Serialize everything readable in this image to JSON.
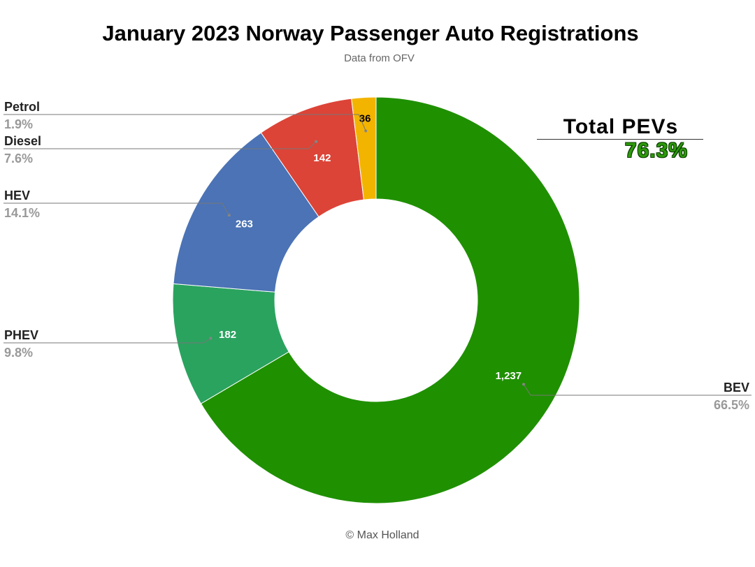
{
  "title": "January 2023 Norway Passenger Auto Registrations",
  "subtitle": "Data from OFV",
  "footer": "© Max Holland",
  "annotation": {
    "label": "Total PEVs",
    "value": "76.3%"
  },
  "chart_data": {
    "type": "pie",
    "donut": true,
    "slices": [
      {
        "label": "BEV",
        "value": 1237,
        "value_label": "1,237",
        "percent_label": "66.5%",
        "color": "#1f9000",
        "value_text_color": "#ffffff"
      },
      {
        "label": "PHEV",
        "value": 182,
        "value_label": "182",
        "percent_label": "9.8%",
        "color": "#2aa35f",
        "value_text_color": "#ffffff"
      },
      {
        "label": "HEV",
        "value": 263,
        "value_label": "263",
        "percent_label": "14.1%",
        "color": "#4b73b5",
        "value_text_color": "#ffffff"
      },
      {
        "label": "Diesel",
        "value": 142,
        "value_label": "142",
        "percent_label": "7.6%",
        "color": "#dc4437",
        "value_text_color": "#ffffff"
      },
      {
        "label": "Petrol",
        "value": 36,
        "value_label": "36",
        "percent_label": "1.9%",
        "color": "#f3b400",
        "value_text_color": "#000000"
      }
    ]
  }
}
